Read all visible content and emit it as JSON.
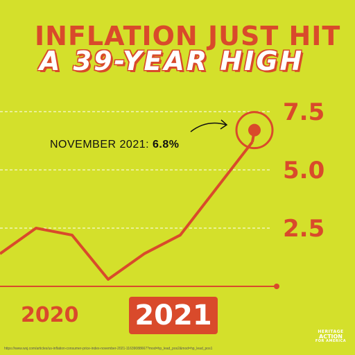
{
  "title_line1": "INFLATION JUST HIT",
  "title_line2": "A 39-YEAR HIGH",
  "annotation": {
    "label": "NOVEMBER 2021: ",
    "value": "6.8%"
  },
  "source": "https://www.wsj.com/articles/us-inflation-consumer-price-index-november-2021-11639088667?mod=hp_lead_pos2&mod=hp_lead_pos1",
  "logo": {
    "line1": "HERITAGE",
    "line2": "ACTION",
    "line3": "FOR AMERICA"
  },
  "colors": {
    "background": "#d4e02b",
    "accent": "#d94a2b",
    "white": "#ffffff"
  },
  "chart_data": {
    "type": "line",
    "x_labels": [
      "2020",
      "2021"
    ],
    "highlighted_x_label": "2021",
    "yticks": [
      "7.5",
      "5.0",
      "2.5"
    ],
    "ylim": [
      0,
      8.5
    ],
    "grid": "dashed horizontal at y ticks",
    "series": [
      {
        "points": [
          {
            "x": 0,
            "y": 1.4
          },
          {
            "x": 1,
            "y": 2.5
          },
          {
            "x": 2,
            "y": 2.2
          },
          {
            "x": 3,
            "y": 0.3
          },
          {
            "x": 4,
            "y": 1.4
          },
          {
            "x": 5,
            "y": 2.2
          },
          {
            "x": 6,
            "y": 4.2
          },
          {
            "x": 7,
            "y": 6.2
          }
        ]
      }
    ],
    "highlight": {
      "label": "November 2021",
      "value": 6.8
    }
  }
}
